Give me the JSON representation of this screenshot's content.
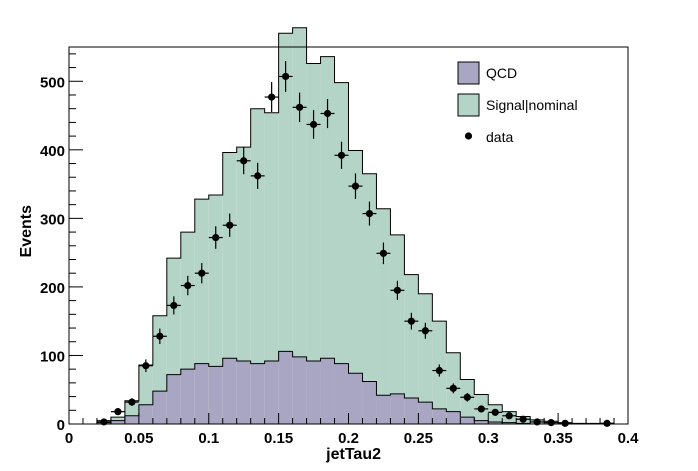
{
  "chart_data": {
    "type": "histogram",
    "xlabel": "jetTau2",
    "ylabel": "Events",
    "xlim": [
      0,
      0.4
    ],
    "ylim": [
      0,
      550
    ],
    "x_ticks": [
      0,
      0.05,
      0.1,
      0.15,
      0.2,
      0.25,
      0.3,
      0.35,
      0.4
    ],
    "x_tick_labels": [
      "0",
      "0.05",
      "0.1",
      "0.15",
      "0.2",
      "0.25",
      "0.3",
      "0.35",
      "0.4"
    ],
    "y_ticks": [
      0,
      100,
      200,
      300,
      400,
      500
    ],
    "y_tick_labels": [
      "0",
      "100",
      "200",
      "300",
      "400",
      "500"
    ],
    "bin_width": 0.01,
    "bin_edges_start": 0,
    "series": [
      {
        "name": "QCD",
        "color": "#a9a6c4",
        "values": [
          0,
          0,
          2,
          5,
          12,
          28,
          48,
          72,
          80,
          88,
          84,
          96,
          92,
          88,
          92,
          106,
          98,
          92,
          96,
          88,
          74,
          62,
          42,
          44,
          38,
          32,
          22,
          18,
          10,
          5,
          3,
          2,
          1,
          0,
          0,
          0,
          0,
          0,
          0,
          0
        ]
      },
      {
        "name": "Signal|nominal",
        "color": "#b4d4c8",
        "values": [
          0,
          0,
          3,
          5,
          22,
          58,
          110,
          170,
          200,
          240,
          250,
          300,
          312,
          372,
          362,
          464,
          480,
          434,
          440,
          410,
          325,
          303,
          272,
          232,
          180,
          158,
          128,
          86,
          55,
          38,
          25,
          16,
          10,
          6,
          4,
          2,
          1,
          1,
          1,
          0
        ]
      }
    ],
    "data": {
      "name": "data",
      "x": [
        0.025,
        0.035,
        0.045,
        0.055,
        0.065,
        0.075,
        0.085,
        0.095,
        0.105,
        0.115,
        0.125,
        0.135,
        0.145,
        0.155,
        0.165,
        0.175,
        0.185,
        0.195,
        0.205,
        0.215,
        0.225,
        0.235,
        0.245,
        0.255,
        0.265,
        0.275,
        0.285,
        0.295,
        0.305,
        0.315,
        0.325,
        0.335,
        0.345,
        0.355,
        0.385
      ],
      "y": [
        3,
        18,
        32,
        85,
        128,
        173,
        202,
        220,
        272,
        290,
        384,
        362,
        477,
        507,
        462,
        437,
        453,
        392,
        347,
        307,
        249,
        195,
        150,
        136,
        78,
        52,
        39,
        22,
        17,
        12,
        7,
        3,
        2,
        1,
        1
      ]
    },
    "legend": {
      "placement": "top-right",
      "entries": [
        {
          "label": "QCD",
          "marker": "fill",
          "color": "#a9a6c4"
        },
        {
          "label": "Signal|nominal",
          "marker": "fill",
          "color": "#b4d4c8"
        },
        {
          "label": "data",
          "marker": "dot",
          "color": "#000000"
        }
      ]
    }
  }
}
